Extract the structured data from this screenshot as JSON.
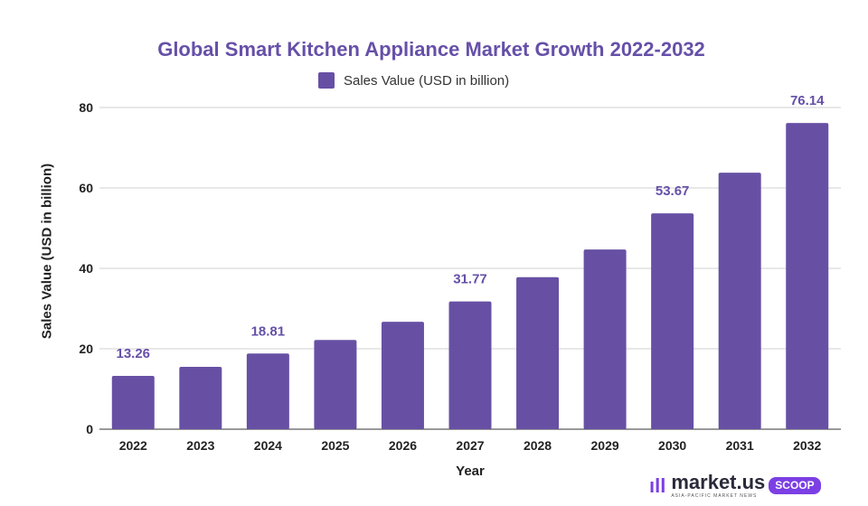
{
  "chart_data": {
    "type": "bar",
    "title": "Global Smart Kitchen Appliance Market Growth 2022-2032",
    "xlabel": "Year",
    "ylabel": "Sales Value (USD in billion)",
    "ylim": [
      0,
      80
    ],
    "yticks": [
      "0",
      "20",
      "40",
      "60",
      "80"
    ],
    "grid": true,
    "legend_position": "top",
    "categories": [
      "2022",
      "2023",
      "2024",
      "2025",
      "2026",
      "2027",
      "2028",
      "2029",
      "2030",
      "2031",
      "2032"
    ],
    "series": [
      {
        "name": "Sales Value (USD in billion)",
        "color": "#6750a4",
        "values": [
          13.26,
          15.5,
          18.81,
          22.2,
          26.7,
          31.77,
          37.8,
          44.7,
          53.67,
          63.8,
          76.14
        ],
        "data_labels": [
          "13.26",
          null,
          "18.81",
          null,
          null,
          "31.77",
          null,
          null,
          "53.67",
          null,
          "76.14"
        ]
      }
    ]
  },
  "logo": {
    "brand": "market.us",
    "badge": "SCOOP",
    "tagline": "ASIA-PACIFIC MARKET NEWS"
  }
}
